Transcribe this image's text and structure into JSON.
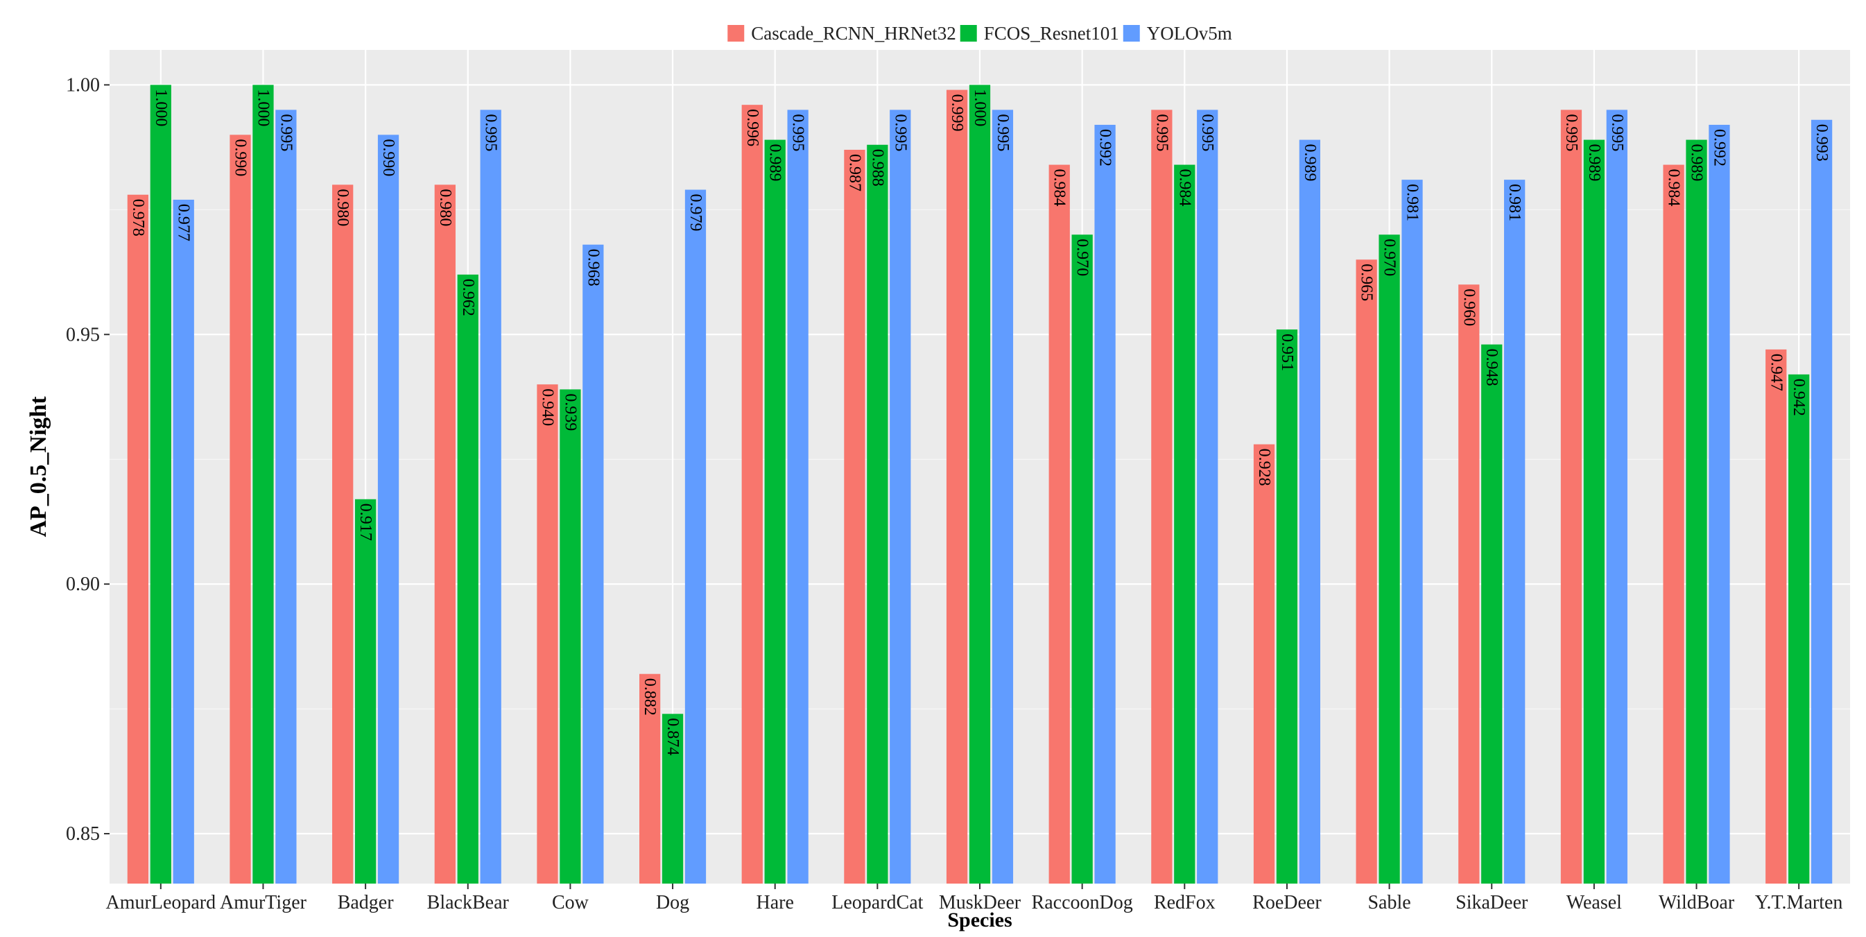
{
  "chart_data": {
    "type": "bar",
    "title": "",
    "xlabel": "Species",
    "ylabel": "AP_0.5_Night",
    "ylim": [
      0.84,
      1.007
    ],
    "yticks": [
      0.85,
      0.9,
      0.95,
      1.0
    ],
    "ytick_labels": [
      "0.85",
      "0.90",
      "0.95",
      "1.00"
    ],
    "grid": true,
    "legend_position": "top-center",
    "categories": [
      "AmurLeopard",
      "AmurTiger",
      "Badger",
      "BlackBear",
      "Cow",
      "Dog",
      "Hare",
      "LeopardCat",
      "MuskDeer",
      "RaccoonDog",
      "RedFox",
      "RoeDeer",
      "Sable",
      "SikaDeer",
      "Weasel",
      "WildBoar",
      "Y.T.Marten"
    ],
    "series": [
      {
        "name": "Cascade_RCNN_HRNet32",
        "color": "#F8766D",
        "values": [
          0.978,
          0.99,
          0.98,
          0.98,
          0.94,
          0.882,
          0.996,
          0.987,
          0.999,
          0.984,
          0.995,
          0.928,
          0.965,
          0.96,
          0.995,
          0.984,
          0.947
        ],
        "labels": [
          "0.978",
          "0.990",
          "0.980",
          "0.980",
          "0.940",
          "0.882",
          "0.996",
          "0.987",
          "0.999",
          "0.984",
          "0.995",
          "0.928",
          "0.965",
          "0.960",
          "0.995",
          "0.984",
          "0.947"
        ]
      },
      {
        "name": "FCOS_Resnet101",
        "color": "#00BA38",
        "values": [
          1.0,
          1.0,
          0.917,
          0.962,
          0.939,
          0.874,
          0.989,
          0.988,
          1.0,
          0.97,
          0.984,
          0.951,
          0.97,
          0.948,
          0.989,
          0.989,
          0.942
        ],
        "labels": [
          "1.000",
          "1.000",
          "0.917",
          "0.962",
          "0.939",
          "0.874",
          "0.989",
          "0.988",
          "1.000",
          "0.970",
          "0.984",
          "0.951",
          "0.970",
          "0.948",
          "0.989",
          "0.989",
          "0.942"
        ]
      },
      {
        "name": "YOLOv5m",
        "color": "#619CFF",
        "values": [
          0.977,
          0.995,
          0.99,
          0.995,
          0.968,
          0.979,
          0.995,
          0.995,
          0.995,
          0.992,
          0.995,
          0.989,
          0.981,
          0.981,
          0.995,
          0.992,
          0.993
        ],
        "labels": [
          "0.977",
          "0.995",
          "0.990",
          "0.995",
          "0.968",
          "0.979",
          "0.995",
          "0.995",
          "0.995",
          "0.992",
          "0.995",
          "0.989",
          "0.981",
          "0.981",
          "0.995",
          "0.992",
          "0.993"
        ]
      }
    ]
  },
  "colors": {
    "panel_background": "#EBEBEB",
    "gridline": "#FFFFFF",
    "label_text": "#000000"
  }
}
